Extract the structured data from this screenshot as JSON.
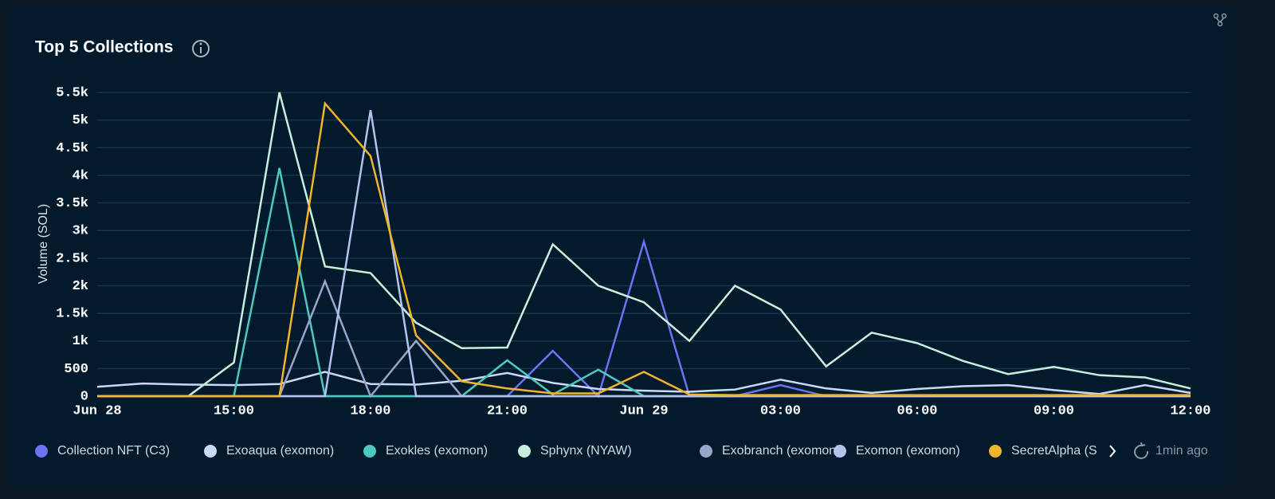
{
  "chart_data": {
    "type": "line",
    "title": "Top 5 Collections",
    "y_label": "Volume (SOL)",
    "updated": "1min ago",
    "categories": [
      "Jun 28",
      null,
      null,
      "15:00",
      null,
      null,
      "18:00",
      null,
      null,
      "21:00",
      null,
      null,
      "Jun 29",
      null,
      null,
      "03:00",
      null,
      null,
      "06:00",
      null,
      null,
      "09:00",
      null,
      null,
      "12:00"
    ],
    "ylim": [
      0,
      5500
    ],
    "yticks": [
      0,
      500,
      {
        "value": 1000,
        "label": "1k"
      },
      {
        "value": 1500,
        "label": "1.5k"
      },
      {
        "value": 2000,
        "label": "2k"
      },
      {
        "value": 2500,
        "label": "2.5k"
      },
      {
        "value": 3000,
        "label": "3k"
      },
      {
        "value": 3500,
        "label": "3.5k"
      },
      {
        "value": 4000,
        "label": "4k"
      },
      {
        "value": 4500,
        "label": "4.5k"
      },
      {
        "value": 5000,
        "label": "5k"
      },
      {
        "value": 5500,
        "label": "5.5k"
      }
    ],
    "grid": true,
    "legend": "bottom",
    "series": [
      {
        "name": "Collection NFT (C3)",
        "color": "#6b73f2",
        "values": [
          0,
          0,
          0,
          0,
          0,
          0,
          0,
          0,
          0,
          0,
          820,
          0,
          2800,
          0,
          0,
          200,
          0,
          0,
          0,
          0,
          0,
          0,
          0,
          0,
          0
        ]
      },
      {
        "name": "Exoaqua (exomon)",
        "color": "#c9daf8",
        "values": [
          170,
          230,
          210,
          200,
          220,
          440,
          220,
          210,
          280,
          420,
          240,
          130,
          100,
          80,
          120,
          300,
          140,
          60,
          130,
          180,
          200,
          110,
          40,
          200,
          60
        ]
      },
      {
        "name": "Exokles (exomon)",
        "color": "#4cc9c0",
        "values": [
          0,
          0,
          0,
          0,
          4130,
          0,
          0,
          0,
          0,
          650,
          30,
          480,
          0,
          0,
          0,
          0,
          0,
          0,
          0,
          0,
          0,
          0,
          0,
          0,
          0
        ]
      },
      {
        "name": "Sphynx (NYAW)",
        "color": "#c6efdc",
        "values": [
          0,
          0,
          0,
          610,
          5500,
          2350,
          2230,
          1330,
          870,
          880,
          2750,
          2000,
          1700,
          1000,
          2000,
          1570,
          540,
          1150,
          960,
          640,
          400,
          530,
          380,
          340,
          140
        ]
      },
      {
        "name": "Exobranch (exomon)",
        "color": "#98a6cc",
        "values": [
          0,
          0,
          0,
          0,
          0,
          2080,
          0,
          1000,
          0,
          0,
          0,
          0,
          0,
          0,
          0,
          0,
          0,
          0,
          0,
          0,
          0,
          0,
          0,
          0,
          0
        ]
      },
      {
        "name": "Exomon (exomon)",
        "color": "#b4c2ee",
        "values": [
          0,
          0,
          0,
          0,
          0,
          0,
          5180,
          0,
          0,
          0,
          0,
          0,
          0,
          0,
          0,
          0,
          0,
          0,
          0,
          0,
          0,
          0,
          0,
          0,
          0
        ]
      },
      {
        "name": "SecretAlpha (S",
        "color": "#f2b42a",
        "values": [
          0,
          0,
          0,
          0,
          0,
          5300,
          4350,
          1100,
          270,
          140,
          50,
          50,
          440,
          30,
          20,
          20,
          20,
          20,
          20,
          20,
          20,
          20,
          20,
          20,
          20
        ]
      }
    ]
  }
}
